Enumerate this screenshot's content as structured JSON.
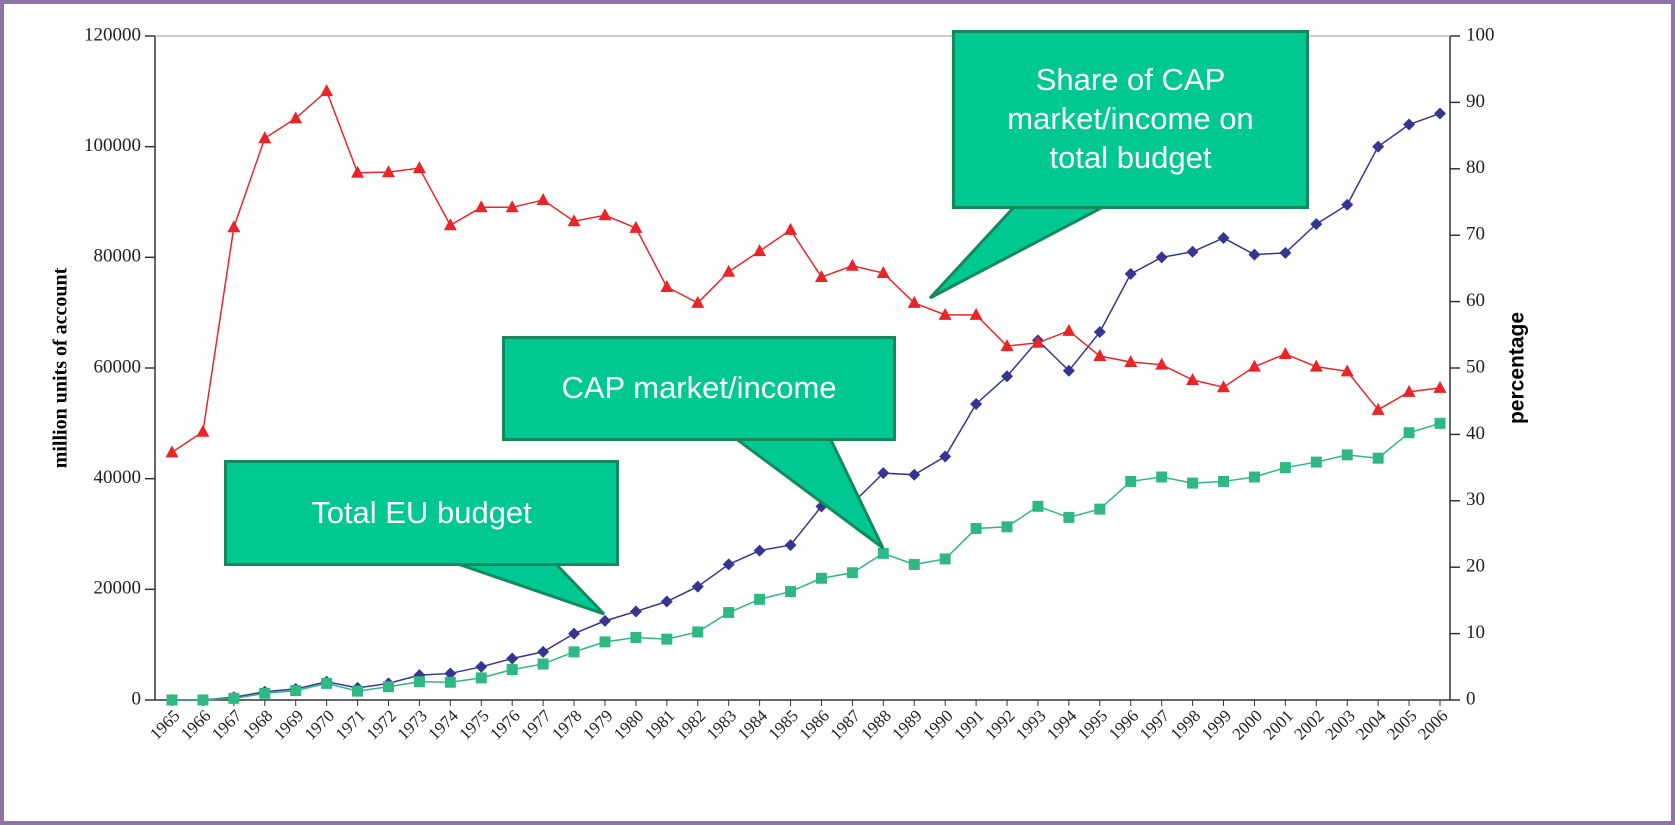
{
  "chart_data": {
    "type": "line",
    "ylabel": "million units of account",
    "y2label": "percentage",
    "categories": [
      "1965",
      "1966",
      "1967",
      "1968",
      "1969",
      "1970",
      "1971",
      "1972",
      "1973",
      "1974",
      "1975",
      "1976",
      "1977",
      "1978",
      "1979",
      "1980",
      "1981",
      "1982",
      "1983",
      "1984",
      "1985",
      "1986",
      "1987",
      "1988",
      "1989",
      "1990",
      "1991",
      "1992",
      "1993",
      "1994",
      "1995",
      "1996",
      "1997",
      "1998",
      "1999",
      "2000",
      "2001",
      "2002",
      "2003",
      "2004",
      "2005",
      "2006"
    ],
    "series": [
      {
        "name": "Total EU budget",
        "color": "#363691",
        "marker": "diamond",
        "axis": "y",
        "values": [
          0,
          0,
          500,
          1500,
          2000,
          3300,
          2200,
          3000,
          4500,
          4800,
          6000,
          7500,
          8700,
          12000,
          14300,
          16000,
          17800,
          20500,
          24500,
          27000,
          28000,
          35000,
          35500,
          41000,
          40700,
          44000,
          53500,
          58500,
          65000,
          59500,
          66500,
          77000,
          80000,
          81000,
          83500,
          80500,
          80800,
          86000,
          89500,
          100000,
          104000,
          106000
        ]
      },
      {
        "name": "CAP market/income",
        "color": "#2fb784",
        "marker": "square",
        "axis": "y",
        "values": [
          0,
          0,
          300,
          1200,
          1700,
          3000,
          1600,
          2400,
          3300,
          3200,
          4000,
          5500,
          6500,
          8700,
          10500,
          11300,
          11000,
          12300,
          15800,
          18200,
          19600,
          22000,
          23000,
          26500,
          24500,
          25500,
          31000,
          31300,
          35000,
          33000,
          34500,
          39500,
          40300,
          39200,
          39500,
          40300,
          42000,
          43000,
          44300,
          43700,
          48300,
          50000
        ]
      },
      {
        "name": "Share of CAP market/income on total budget",
        "color": "#e8262a",
        "marker": "triangle",
        "axis": "y2",
        "values": [
          37.3,
          40.4,
          71.2,
          84.6,
          87.6,
          91.7,
          79.4,
          79.5,
          80.1,
          71.5,
          74.2,
          74.2,
          75.3,
          72.1,
          73.0,
          71.1,
          62.2,
          59.8,
          64.5,
          67.6,
          70.8,
          63.7,
          65.4,
          64.3,
          59.8,
          58.0,
          58.0,
          53.3,
          53.8,
          55.6,
          51.8,
          50.9,
          50.5,
          48.2,
          47.1,
          50.2,
          52.1,
          50.2,
          49.5,
          43.7,
          46.4,
          47.0
        ]
      }
    ],
    "ylim": [
      0,
      120000
    ],
    "yticks": [
      0,
      20000,
      40000,
      60000,
      80000,
      100000,
      120000
    ],
    "y2lim": [
      0,
      100
    ],
    "y2ticks": [
      0,
      10,
      20,
      30,
      40,
      50,
      60,
      70,
      80,
      90,
      100
    ],
    "annotations": [
      "Share of CAP market/income on total budget",
      "CAP market/income",
      "Total EU budget"
    ]
  }
}
